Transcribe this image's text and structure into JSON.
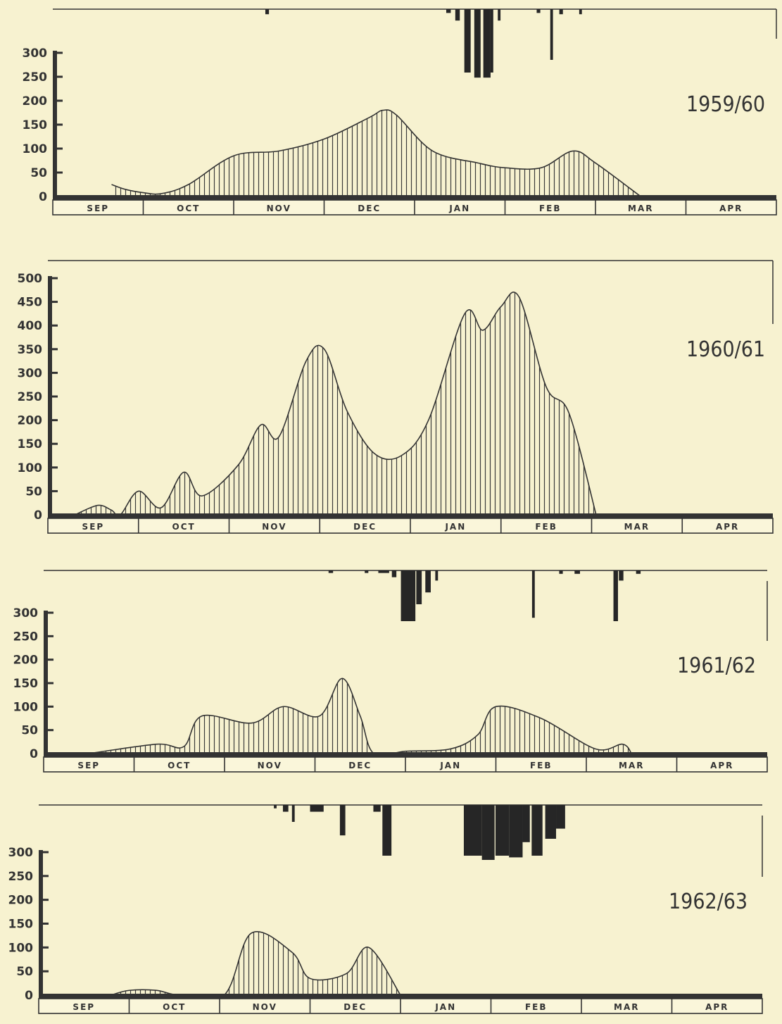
{
  "chart_data": [
    {
      "type": "area",
      "title": "1959/60",
      "months": [
        "SEP",
        "OCT",
        "NOV",
        "DEC",
        "JAN",
        "FEB",
        "MAR",
        "APR"
      ],
      "ylim": [
        0,
        300
      ],
      "yticks": [
        0,
        50,
        100,
        150,
        200,
        250,
        300
      ],
      "x_unit": "month position (0 = start of SEP, 8 = end of APR)",
      "points": [
        [
          0.65,
          25
        ],
        [
          0.8,
          15
        ],
        [
          1.0,
          8
        ],
        [
          1.2,
          6
        ],
        [
          1.5,
          25
        ],
        [
          2.0,
          85
        ],
        [
          2.5,
          95
        ],
        [
          3.0,
          120
        ],
        [
          3.5,
          165
        ],
        [
          3.65,
          180
        ],
        [
          3.8,
          170
        ],
        [
          4.2,
          95
        ],
        [
          4.7,
          70
        ],
        [
          5.0,
          60
        ],
        [
          5.4,
          60
        ],
        [
          5.75,
          95
        ],
        [
          6.0,
          70
        ],
        [
          6.5,
          0
        ]
      ],
      "bars_above": [
        [
          2.35,
          0.04,
          20
        ],
        [
          4.35,
          0.05,
          15
        ],
        [
          4.45,
          0.05,
          45
        ],
        [
          4.55,
          0.07,
          250
        ],
        [
          4.66,
          0.07,
          270
        ],
        [
          4.76,
          0.08,
          270
        ],
        [
          4.84,
          0.03,
          250
        ],
        [
          4.92,
          0.03,
          45
        ],
        [
          5.35,
          0.04,
          15
        ],
        [
          5.5,
          0.03,
          200
        ],
        [
          5.6,
          0.04,
          20
        ],
        [
          5.82,
          0.03,
          20
        ]
      ]
    },
    {
      "type": "area",
      "title": "1960/61",
      "months": [
        "SEP",
        "OCT",
        "NOV",
        "DEC",
        "JAN",
        "FEB",
        "MAR",
        "APR"
      ],
      "ylim": [
        0,
        500
      ],
      "yticks": [
        0,
        50,
        100,
        150,
        200,
        250,
        300,
        350,
        400,
        450,
        500
      ],
      "x_unit": "month position (0 = start of SEP, 8 = end of APR)",
      "points": [
        [
          0.3,
          0
        ],
        [
          0.55,
          20
        ],
        [
          0.7,
          10
        ],
        [
          0.8,
          0
        ],
        [
          1.0,
          50
        ],
        [
          1.25,
          15
        ],
        [
          1.5,
          90
        ],
        [
          1.7,
          40
        ],
        [
          2.1,
          105
        ],
        [
          2.35,
          190
        ],
        [
          2.55,
          165
        ],
        [
          2.85,
          325
        ],
        [
          3.05,
          350
        ],
        [
          3.3,
          220
        ],
        [
          3.6,
          130
        ],
        [
          3.9,
          125
        ],
        [
          4.2,
          200
        ],
        [
          4.6,
          425
        ],
        [
          4.8,
          390
        ],
        [
          5.0,
          440
        ],
        [
          5.2,
          460
        ],
        [
          5.5,
          270
        ],
        [
          5.75,
          215
        ],
        [
          6.05,
          0
        ]
      ],
      "bars_above": []
    },
    {
      "type": "area",
      "title": "1961/62",
      "months": [
        "SEP",
        "OCT",
        "NOV",
        "DEC",
        "JAN",
        "FEB",
        "MAR",
        "APR"
      ],
      "ylim": [
        0,
        300
      ],
      "yticks": [
        0,
        50,
        100,
        150,
        200,
        250,
        300
      ],
      "x_unit": "month position (0 = start of SEP, 8 = end of APR)",
      "points": [
        [
          0.5,
          0
        ],
        [
          1.25,
          20
        ],
        [
          1.55,
          15
        ],
        [
          1.75,
          80
        ],
        [
          2.3,
          65
        ],
        [
          2.65,
          100
        ],
        [
          3.05,
          80
        ],
        [
          3.3,
          160
        ],
        [
          3.5,
          80
        ],
        [
          3.65,
          0
        ],
        [
          4.0,
          5
        ],
        [
          4.5,
          10
        ],
        [
          4.8,
          40
        ],
        [
          5.0,
          100
        ],
        [
          5.5,
          75
        ],
        [
          6.1,
          10
        ],
        [
          6.4,
          20
        ],
        [
          6.5,
          0
        ]
      ],
      "bars_above": [
        [
          3.15,
          0.05,
          15
        ],
        [
          3.55,
          0.04,
          15
        ],
        [
          3.7,
          0.12,
          15
        ],
        [
          3.85,
          0.05,
          40
        ],
        [
          3.95,
          0.16,
          300
        ],
        [
          4.12,
          0.06,
          200
        ],
        [
          4.22,
          0.06,
          130
        ],
        [
          4.33,
          0.03,
          60
        ],
        [
          5.4,
          0.03,
          280
        ],
        [
          5.7,
          0.04,
          20
        ],
        [
          5.87,
          0.06,
          20
        ],
        [
          6.3,
          0.05,
          300
        ],
        [
          6.36,
          0.05,
          60
        ],
        [
          6.55,
          0.05,
          20
        ]
      ]
    },
    {
      "type": "area",
      "title": "1962/63",
      "months": [
        "SEP",
        "OCT",
        "NOV",
        "DEC",
        "JAN",
        "FEB",
        "MAR",
        "APR"
      ],
      "ylim": [
        0,
        300
      ],
      "yticks": [
        0,
        50,
        100,
        150,
        200,
        250,
        300
      ],
      "x_unit": "month position (0 = start of SEP, 8 = end of APR)",
      "points": [
        [
          0.8,
          0
        ],
        [
          1.0,
          10
        ],
        [
          1.3,
          10
        ],
        [
          1.55,
          0
        ],
        [
          2.05,
          0
        ],
        [
          2.35,
          130
        ],
        [
          2.8,
          90
        ],
        [
          3.0,
          35
        ],
        [
          3.4,
          45
        ],
        [
          3.65,
          100
        ],
        [
          4.0,
          0
        ]
      ],
      "bars_above": [
        [
          2.6,
          0.03,
          20
        ],
        [
          2.7,
          0.06,
          40
        ],
        [
          2.8,
          0.03,
          100
        ],
        [
          3.0,
          0.15,
          40
        ],
        [
          3.33,
          0.06,
          180
        ],
        [
          3.7,
          0.08,
          40
        ],
        [
          3.8,
          0.1,
          300
        ],
        [
          4.7,
          0.2,
          300
        ],
        [
          4.9,
          0.14,
          325
        ],
        [
          5.05,
          0.15,
          300
        ],
        [
          5.2,
          0.15,
          310
        ],
        [
          5.35,
          0.08,
          220
        ],
        [
          5.45,
          0.12,
          300
        ],
        [
          5.6,
          0.12,
          200
        ],
        [
          5.72,
          0.1,
          140
        ]
      ]
    }
  ]
}
